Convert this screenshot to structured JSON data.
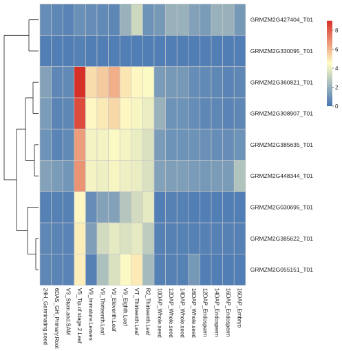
{
  "chart_data": {
    "type": "heatmap",
    "title": "",
    "rows": [
      "GRMZM2G427404_T01",
      "GRMZM2G330095_T01",
      "GRMZM2G360821_T01",
      "GRMZM2G308907_T01",
      "GRMZM2G385635_T01",
      "GRMZM2G448344_T01",
      "GRMZM2G030695_T01",
      "GRMZM2G385622_T01",
      "GRMZM2G055151_T01"
    ],
    "columns": [
      "24H_Germinating.seed",
      "6DAS_GH_Primary.Root",
      "V3_Stem.and.SAM",
      "V5_Tip.of.stage.2.Leaf",
      "V9_Immature.Leaves",
      "V9_Thirteenth.Leaf",
      "V9_Eleventh.Leaf",
      "V9_Eighth.Leaf",
      "VT_Thirteenth.Leaf",
      "R2_Thirteenth.Leaf",
      "10DAP_Whole.seed",
      "12DAP_Whole.seed",
      "14DAP_Whole.seed",
      "16DAP_Whole.seed",
      "12DAP_Endosperm",
      "14DAP_Endosperm",
      "16DAP_Endosperm",
      "16DAP_Embryo"
    ],
    "values": [
      [
        0.8,
        0.6,
        0.5,
        0.9,
        0.8,
        0.7,
        0.6,
        2.0,
        3.3,
        1.0,
        1.2,
        2.0,
        2.0,
        1.5,
        1.3,
        2.0,
        2.0,
        1.2
      ],
      [
        0.3,
        0.3,
        0.3,
        0.4,
        0.3,
        0.3,
        0.3,
        0.3,
        0.3,
        0.3,
        0.3,
        0.3,
        0.3,
        0.3,
        0.3,
        0.3,
        0.3,
        0.3
      ],
      [
        1.5,
        0.6,
        0.7,
        9.0,
        5.2,
        5.6,
        6.2,
        5.0,
        4.6,
        4.4,
        1.3,
        1.2,
        1.2,
        0.8,
        0.7,
        0.6,
        0.5,
        0.6
      ],
      [
        1.3,
        0.5,
        0.6,
        8.4,
        4.6,
        4.9,
        5.3,
        4.6,
        4.3,
        4.0,
        2.0,
        1.0,
        1.0,
        0.8,
        0.6,
        0.6,
        0.5,
        0.6
      ],
      [
        1.0,
        0.5,
        0.7,
        6.6,
        4.2,
        4.2,
        4.4,
        4.2,
        4.0,
        3.6,
        1.3,
        1.0,
        1.0,
        1.0,
        0.9,
        0.8,
        0.8,
        1.0
      ],
      [
        1.5,
        1.3,
        1.1,
        6.8,
        4.2,
        4.1,
        4.3,
        4.1,
        4.0,
        3.6,
        1.5,
        1.4,
        1.4,
        1.3,
        1.2,
        1.3,
        1.3,
        2.6
      ],
      [
        0.4,
        0.4,
        0.4,
        4.6,
        0.8,
        1.5,
        1.5,
        2.7,
        3.4,
        3.9,
        0.3,
        0.4,
        0.4,
        0.3,
        0.3,
        0.3,
        0.3,
        0.3
      ],
      [
        0.6,
        0.5,
        0.5,
        4.8,
        1.4,
        3.4,
        3.9,
        3.6,
        3.9,
        2.9,
        0.4,
        0.4,
        0.4,
        0.4,
        0.4,
        0.4,
        0.4,
        0.4
      ],
      [
        0.6,
        0.5,
        0.5,
        4.8,
        0.4,
        2.5,
        3.6,
        4.4,
        4.9,
        2.3,
        0.4,
        0.4,
        0.4,
        1.2,
        0.3,
        0.3,
        0.3,
        0.3
      ]
    ],
    "colorbar": {
      "min": 0,
      "max": 9,
      "ticks": [
        0,
        2,
        4,
        6,
        8
      ],
      "stops": [
        "#4575b4",
        "#fffcc4",
        "#d73027"
      ]
    },
    "row_dendrogram": true,
    "legend_position": "right"
  }
}
